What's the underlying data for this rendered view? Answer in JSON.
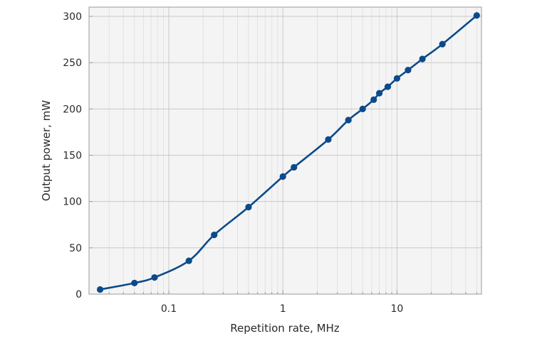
{
  "chart_data": {
    "type": "line",
    "title": "",
    "xlabel": "Repetition rate, MHz",
    "ylabel": "Output power, mW",
    "x_scale": "log",
    "xlim": [
      0.02,
      55
    ],
    "ylim": [
      0,
      310
    ],
    "x_ticks": [
      {
        "value": 0.1,
        "label": "0.1"
      },
      {
        "value": 1,
        "label": "1"
      },
      {
        "value": 10,
        "label": "10"
      }
    ],
    "y_ticks": [
      {
        "value": 0,
        "label": "0"
      },
      {
        "value": 50,
        "label": "50"
      },
      {
        "value": 100,
        "label": "100"
      },
      {
        "value": 150,
        "label": "150"
      },
      {
        "value": 200,
        "label": "200"
      },
      {
        "value": 250,
        "label": "250"
      },
      {
        "value": 300,
        "label": "300"
      }
    ],
    "grid": true,
    "colors": {
      "series": "#0b4a8b",
      "plot_background": "#f4f4f4",
      "grid_major": "#c8c8c8",
      "grid_minor": "#dedede",
      "frame": "#9a9a9a"
    },
    "series": [
      {
        "x": [
          0.025,
          0.05,
          0.075,
          0.15,
          0.25,
          0.5,
          1,
          1.25,
          2.5,
          3.75,
          5,
          6.25,
          7,
          8.3,
          10,
          12.5,
          16.7,
          25,
          50
        ],
        "y": [
          5,
          12,
          18,
          36,
          64,
          94,
          127,
          137,
          167,
          188,
          200,
          210,
          217,
          224,
          233,
          242,
          254,
          270,
          301
        ]
      }
    ]
  }
}
